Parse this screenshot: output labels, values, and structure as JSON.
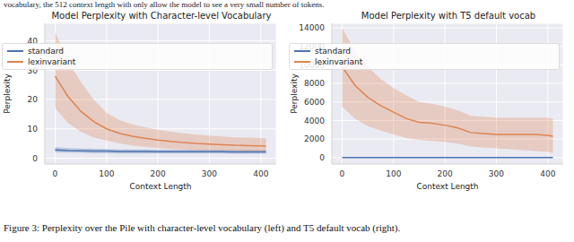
{
  "header_text": "vocabulary, the 512 context length with only allow the model to see a very small number of tokens.",
  "caption": "Figure 3: Perplexity over the Pile with character-level vocabulary (left) and T5 default vocab (right).",
  "chart_data": [
    {
      "type": "line",
      "title": "Model Perplexity with Character-level Vocabulary",
      "x_label": "Context Length",
      "y_label": "Perplexity",
      "x": [
        0,
        25,
        50,
        75,
        100,
        125,
        150,
        175,
        200,
        225,
        250,
        275,
        300,
        325,
        350,
        375,
        400,
        410
      ],
      "xlim": [
        -20,
        430
      ],
      "xticks": [
        0,
        100,
        200,
        300,
        400
      ],
      "ylim": [
        -2,
        46
      ],
      "yticks": [
        0,
        10,
        20,
        30,
        40
      ],
      "grid": true,
      "legend": "upper right",
      "series": [
        {
          "name": "standard",
          "color": "#4c72b0",
          "values": [
            2.8,
            2.6,
            2.5,
            2.4,
            2.4,
            2.3,
            2.3,
            2.3,
            2.2,
            2.2,
            2.2,
            2.2,
            2.2,
            2.2,
            2.1,
            2.1,
            2.1,
            2.1
          ],
          "upper": [
            3.7,
            3.4,
            3.3,
            3.2,
            3.1,
            3,
            3,
            3,
            2.9,
            2.9,
            2.9,
            2.9,
            2.9,
            2.9,
            2.8,
            2.8,
            2.8,
            2.8
          ],
          "lower": [
            2,
            1.9,
            1.8,
            1.7,
            1.7,
            1.6,
            1.6,
            1.6,
            1.6,
            1.6,
            1.6,
            1.6,
            1.6,
            1.6,
            1.5,
            1.5,
            1.5,
            1.5
          ]
        },
        {
          "name": "lexinvariant",
          "color": "#dd8452",
          "values": [
            28,
            21,
            16,
            12.5,
            10,
            8.5,
            7.5,
            6.8,
            6.2,
            5.7,
            5.3,
            5,
            4.8,
            4.6,
            4.4,
            4.3,
            4.2,
            4.1
          ],
          "upper": [
            43,
            33,
            26,
            20,
            15.5,
            13,
            11.5,
            10.5,
            9.7,
            9,
            8.5,
            8,
            7.7,
            7.4,
            7.1,
            7,
            6.9,
            6.8
          ],
          "lower": [
            17,
            12,
            9,
            7,
            6,
            5,
            4.3,
            3.8,
            3.4,
            3.1,
            2.9,
            2.7,
            2.6,
            2.5,
            2.4,
            2.3,
            2.3,
            2.2
          ]
        }
      ]
    },
    {
      "type": "line",
      "title": "Model Perplexity with T5 default vocab",
      "x_label": "Context Length",
      "y_label": "Perplexity",
      "x": [
        0,
        25,
        50,
        75,
        100,
        125,
        150,
        175,
        200,
        225,
        250,
        275,
        300,
        325,
        350,
        375,
        400,
        410
      ],
      "xlim": [
        -20,
        430
      ],
      "xticks": [
        0,
        100,
        200,
        300,
        400
      ],
      "ylim": [
        -700,
        14500
      ],
      "yticks": [
        0,
        2000,
        4000,
        6000,
        8000,
        10000,
        12000,
        14000
      ],
      "grid": true,
      "legend": "upper right",
      "series": [
        {
          "name": "standard",
          "color": "#4c72b0",
          "values": [
            10,
            10,
            10,
            10,
            10,
            10,
            10,
            10,
            10,
            10,
            10,
            10,
            10,
            10,
            10,
            10,
            10,
            10
          ],
          "upper": [
            20,
            20,
            20,
            20,
            20,
            20,
            20,
            20,
            20,
            20,
            20,
            20,
            20,
            20,
            20,
            20,
            20,
            20
          ],
          "lower": [
            5,
            5,
            5,
            5,
            5,
            5,
            5,
            5,
            5,
            5,
            5,
            5,
            5,
            5,
            5,
            5,
            5,
            5
          ]
        },
        {
          "name": "lexinvariant",
          "color": "#dd8452",
          "values": [
            9800,
            7800,
            6500,
            5600,
            4900,
            4200,
            3800,
            3700,
            3500,
            3200,
            2700,
            2600,
            2500,
            2500,
            2500,
            2500,
            2400,
            2300
          ],
          "upper": [
            14000,
            11500,
            9800,
            8500,
            7500,
            6700,
            6000,
            5800,
            5500,
            5100,
            4500,
            4400,
            4300,
            4300,
            4300,
            4300,
            4300,
            4200
          ],
          "lower": [
            5500,
            4200,
            3400,
            2900,
            2500,
            2100,
            1900,
            1800,
            1700,
            1500,
            1200,
            1100,
            1000,
            900,
            800,
            700,
            600,
            500
          ]
        }
      ]
    }
  ]
}
